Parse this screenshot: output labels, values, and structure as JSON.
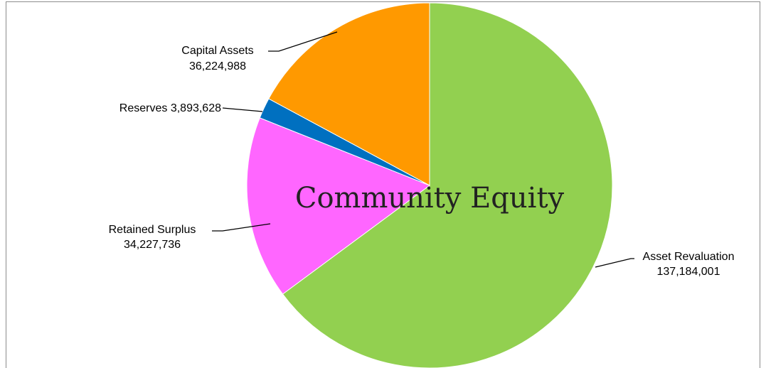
{
  "chart_data": {
    "type": "pie",
    "title": "Community Equity",
    "start_angle_deg": 0,
    "direction": "clockwise",
    "slices": [
      {
        "name": "Asset Revaluation",
        "value": 137184001,
        "value_label": "137,184,001",
        "color": "#92d050"
      },
      {
        "name": "Retained Surplus",
        "value": 34227736,
        "value_label": "34,227,736",
        "color": "#ff66ff"
      },
      {
        "name": "Reserves",
        "value": 3893628,
        "value_label": "3,893,628",
        "color": "#0070c0"
      },
      {
        "name": "Capital Assets",
        "value": 36224988,
        "value_label": "36,224,988",
        "color": "#ff9900"
      }
    ]
  }
}
